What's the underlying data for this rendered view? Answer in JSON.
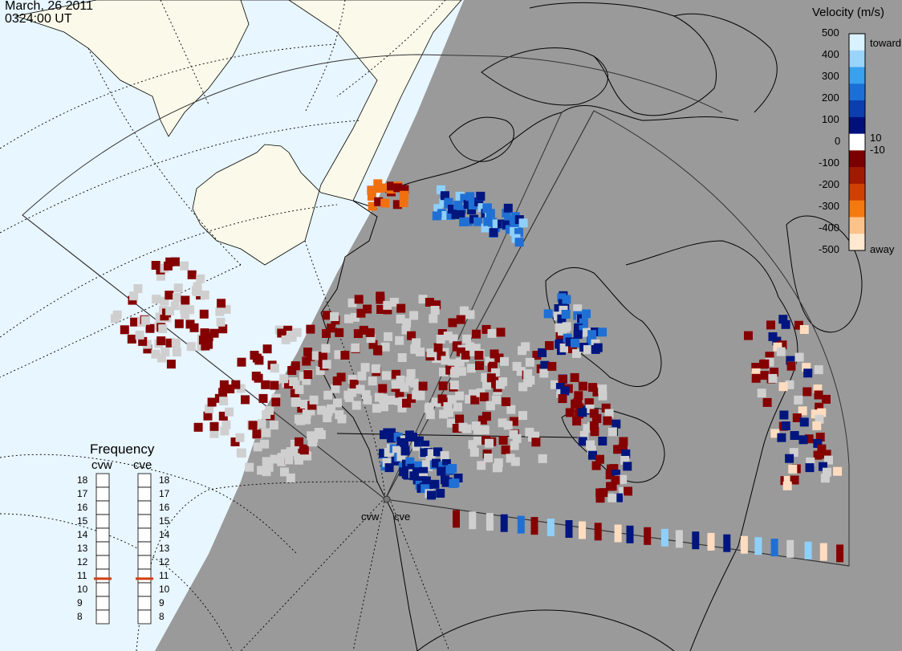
{
  "header": {
    "date": "March, 26 2011",
    "time": "0324:00 UT"
  },
  "radars": {
    "west_code": "cvw",
    "east_code": "cve"
  },
  "velocity_legend": {
    "title": "Velocity (m/s)",
    "ticks": [
      "500",
      "400",
      "300",
      "200",
      "100",
      "10",
      "0",
      "-10",
      "-100",
      "-200",
      "-300",
      "-400",
      "-500"
    ],
    "toward_label": "toward",
    "away_label": "away",
    "colors": [
      "#d9f2ff",
      "#9ad4fa",
      "#3aa1ef",
      "#1b6fd6",
      "#0b3fae",
      "#00107a",
      "#ffffff",
      "#7a0000",
      "#a01a00",
      "#d04000",
      "#f47a10",
      "#fbc38a",
      "#ffe8d0"
    ]
  },
  "frequency_panel": {
    "title": "Frequency",
    "scale": [
      "18",
      "17",
      "16",
      "15",
      "14",
      "13",
      "12",
      "11",
      "10",
      "9",
      "8"
    ],
    "cvw_freq_mhz": 10.8,
    "cve_freq_mhz": 10.8,
    "marker_color": "#d04010"
  },
  "colors": {
    "ocean": "#e8f6ff",
    "night_side": "#9a9a9a",
    "land_day": "#fbfaea",
    "ground_scatter": "#cfcfcf"
  }
}
